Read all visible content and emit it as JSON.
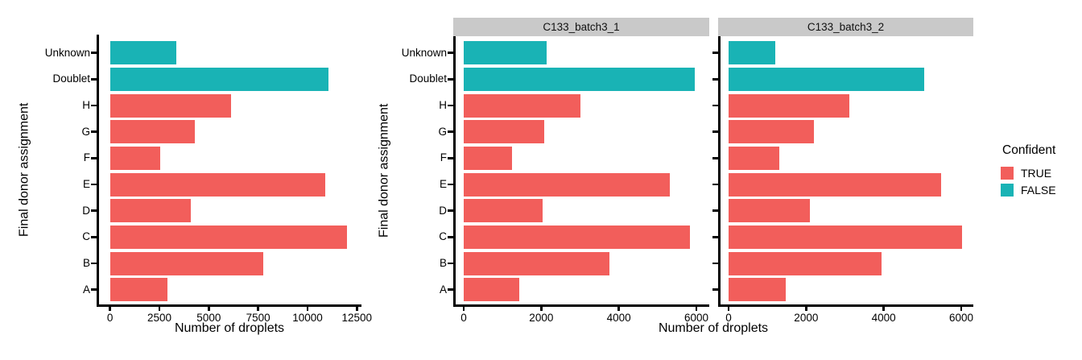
{
  "style": {
    "background": "#FFFFFF",
    "axis_color": "#000000",
    "strip_background": "#C9C9C9",
    "color_true": "#F25E5B",
    "color_false": "#19B3B5"
  },
  "legend": {
    "title": "Confident",
    "items": [
      {
        "label": "TRUE",
        "color": "#F25E5B"
      },
      {
        "label": "FALSE",
        "color": "#19B3B5"
      }
    ]
  },
  "chart_data": [
    {
      "type": "bar",
      "orientation": "horizontal",
      "panel": "combined",
      "xlabel": "Number of droplets",
      "ylabel": "Final donor assignment",
      "categories": [
        "Unknown",
        "Doublet",
        "H",
        "G",
        "F",
        "E",
        "D",
        "C",
        "B",
        "A"
      ],
      "values": [
        3350,
        11050,
        6150,
        4300,
        2550,
        10900,
        4100,
        12000,
        7750,
        2900
      ],
      "confident": [
        false,
        false,
        true,
        true,
        true,
        true,
        true,
        true,
        true,
        true
      ],
      "xlim": [
        0,
        12500
      ],
      "xticks": [
        0,
        2500,
        5000,
        7500,
        10000,
        12500
      ],
      "grid": false
    },
    {
      "type": "bar",
      "orientation": "horizontal",
      "panel": "facet",
      "facet": "C133_batch3_1",
      "xlabel": "Number of droplets",
      "ylabel": "Final donor assignment",
      "categories": [
        "Unknown",
        "Doublet",
        "H",
        "G",
        "F",
        "E",
        "D",
        "C",
        "B",
        "A"
      ],
      "values": [
        2130,
        5950,
        3000,
        2080,
        1240,
        5310,
        2030,
        5830,
        3760,
        1430
      ],
      "confident": [
        false,
        false,
        true,
        true,
        true,
        true,
        true,
        true,
        true,
        true
      ],
      "xlim": [
        0,
        6000
      ],
      "xticks": [
        0,
        2000,
        4000,
        6000
      ],
      "grid": false
    },
    {
      "type": "bar",
      "orientation": "horizontal",
      "panel": "facet",
      "facet": "C133_batch3_2",
      "categories": [
        "Unknown",
        "Doublet",
        "H",
        "G",
        "F",
        "E",
        "D",
        "C",
        "B",
        "A"
      ],
      "values": [
        1200,
        5050,
        3110,
        2200,
        1300,
        5470,
        2090,
        6030,
        3940,
        1470
      ],
      "confident": [
        false,
        false,
        true,
        true,
        true,
        true,
        true,
        true,
        true,
        true
      ],
      "xlim": [
        0,
        6000
      ],
      "xticks": [
        0,
        2000,
        4000,
        6000
      ],
      "grid": false
    }
  ]
}
